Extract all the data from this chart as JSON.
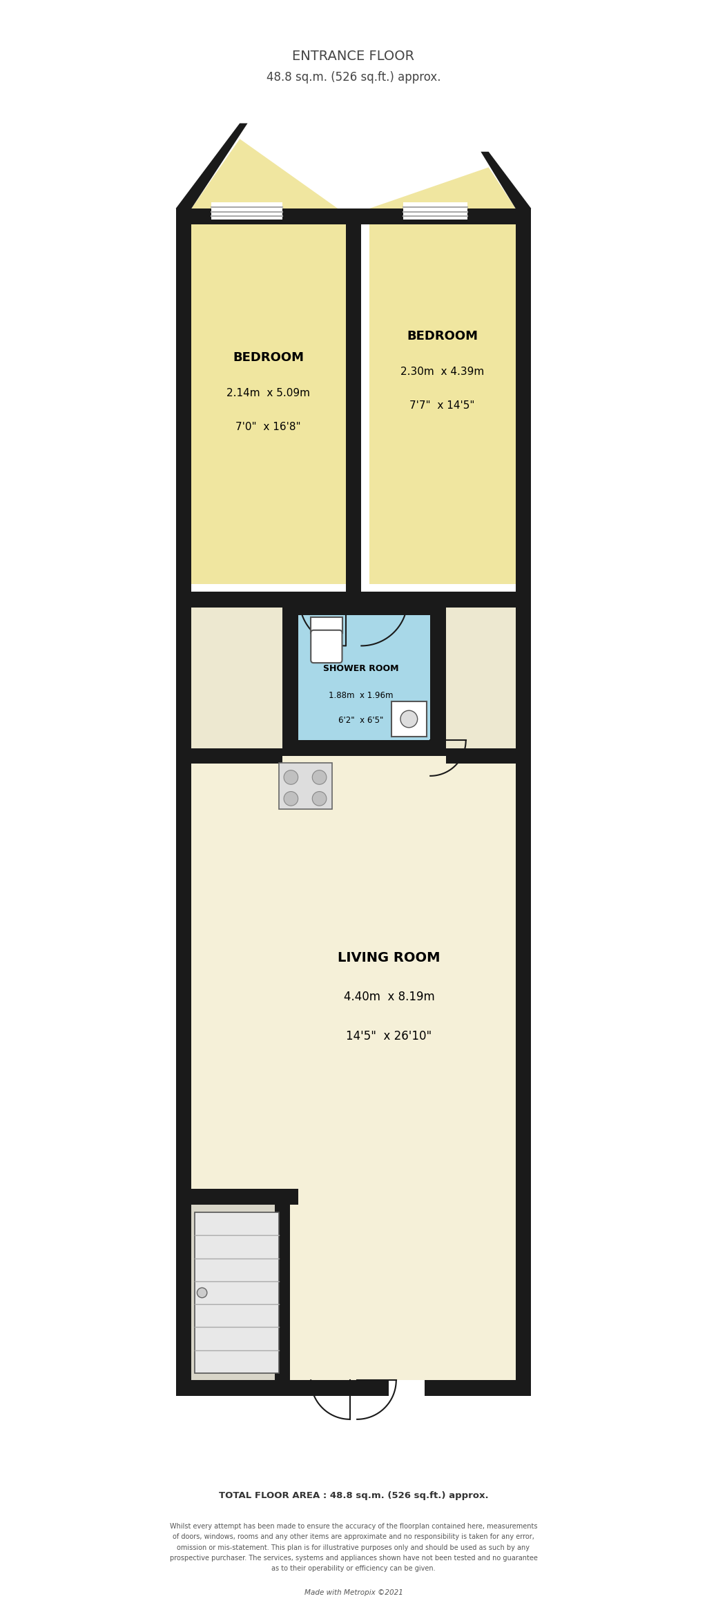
{
  "title_line1": "ENTRANCE FLOOR",
  "title_line2": "48.8 sq.m. (526 sq.ft.) approx.",
  "footer_total": "TOTAL FLOOR AREA : 48.8 sq.m. (526 sq.ft.) approx.",
  "footer_disclaimer": "Whilst every attempt has been made to ensure the accuracy of the floorplan contained here, measurements\nof doors, windows, rooms and any other items are approximate and no responsibility is taken for any error,\nomission or mis-statement. This plan is for illustrative purposes only and should be used as such by any\nprospective purchaser. The services, systems and appliances shown have not been tested and no guarantee\nas to their operability or efficiency can be given.",
  "footer_made": "Made with Metropix ©2021",
  "bg_color": "#ffffff",
  "wall_color": "#1a1a1a",
  "room_fill_yellow": "#f0e6a0",
  "room_fill_blue": "#a8d8e8",
  "room_fill_living": "#f5f0d8",
  "room_fill_landing": "#ede8d0",
  "room_fill_alcove": "#d8d5c8",
  "bedroom1_label": "BEDROOM",
  "bedroom1_dim1": "2.14m  x 5.09m",
  "bedroom1_dim2": "7'0\"  x 16'8\"",
  "bedroom2_label": "BEDROOM",
  "bedroom2_dim1": "2.30m  x 4.39m",
  "bedroom2_dim2": "7'7\"  x 14'5\"",
  "shower_label": "SHOWER ROOM",
  "shower_dim1": "1.88m  x 1.96m",
  "shower_dim2": "6'2\"  x 6'5\"",
  "living_label": "LIVING ROOM",
  "living_dim1": "4.40m  x 8.19m",
  "living_dim2": "14'5\"  x 26'10\""
}
